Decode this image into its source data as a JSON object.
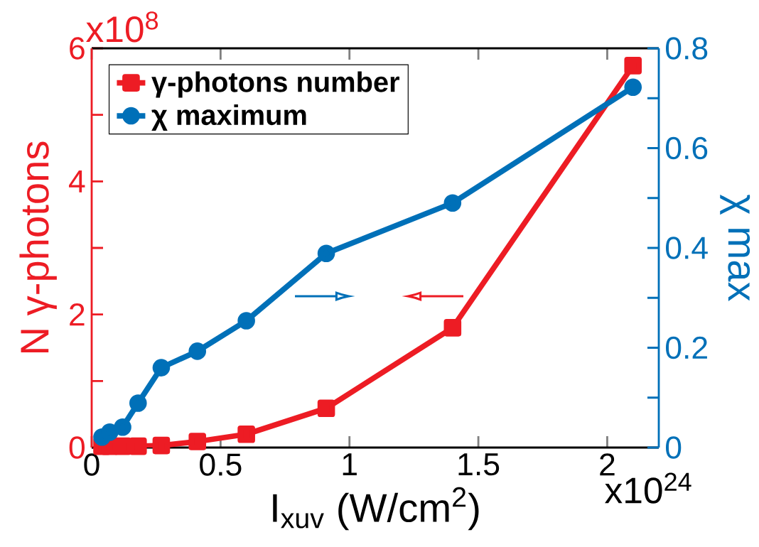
{
  "chart_data": {
    "type": "line",
    "xlabel": "I$_{xuv}$ (W/cm$^{2}$)",
    "ylabel": "N γ-photons",
    "y2label": "χ max",
    "annotations": [
      "x10$^{8}$",
      "x10$^{24}$"
    ],
    "x": [
      0.04,
      0.07,
      0.12,
      0.18,
      0.27,
      0.41,
      0.6,
      0.91,
      1.4,
      2.1
    ],
    "series": [
      {
        "name": "γ-photons number",
        "color": "#ed1c24",
        "marker": "square",
        "values": [
          0.02,
          0.02,
          0.02,
          0.02,
          0.03,
          0.09,
          0.2,
          0.59,
          1.8,
          5.74
        ]
      },
      {
        "name": "χ maximum",
        "color": "#0070b8",
        "marker": "circle",
        "axis": "y2",
        "values": [
          0.021,
          0.031,
          0.041,
          0.089,
          0.16,
          0.193,
          0.254,
          0.389,
          0.49,
          0.722
        ]
      }
    ],
    "xlim": [
      0,
      2.2
    ],
    "xticks": [
      0,
      0.5,
      1,
      1.5,
      2
    ],
    "ylim": [
      0,
      6
    ],
    "yticks": [
      0,
      {
        "value": 1,
        "label": null
      },
      2,
      {
        "value": 3,
        "label": null
      },
      4,
      {
        "value": 5,
        "label": null
      },
      6
    ],
    "y2lim": [
      0,
      0.8
    ],
    "y2ticks": [
      0,
      {
        "value": 0.1,
        "label": null
      },
      0.2,
      {
        "value": 0.3,
        "label": null
      },
      0.4,
      {
        "value": 0.5,
        "label": null
      },
      0.6,
      {
        "value": 0.7,
        "label": null
      },
      0.8
    ],
    "grid": false,
    "legend": "top left"
  }
}
